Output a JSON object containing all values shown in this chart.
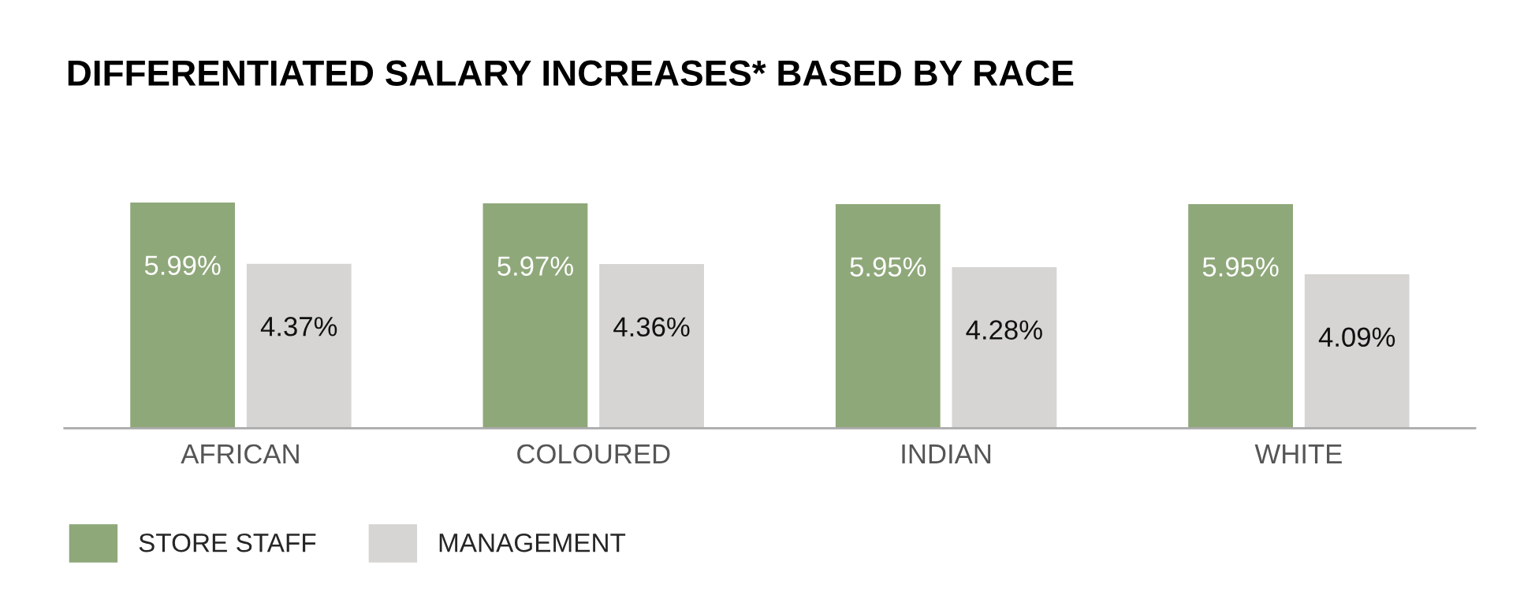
{
  "chart_data": {
    "type": "bar",
    "title": "DIFFERENTIATED SALARY INCREASES* BASED BY RACE",
    "categories": [
      "AFRICAN",
      "COLOURED",
      "INDIAN",
      "WHITE"
    ],
    "series": [
      {
        "name": "STORE STAFF",
        "color": "#8fa87a",
        "values": [
          5.99,
          5.97,
          5.95,
          5.95
        ],
        "value_labels": [
          "5.99%",
          "5.97%",
          "5.95%",
          "5.95%"
        ]
      },
      {
        "name": "MANAGEMENT",
        "color": "#d6d5d3",
        "values": [
          4.37,
          4.36,
          4.28,
          4.09
        ],
        "value_labels": [
          "4.37%",
          "4.36%",
          "4.28%",
          "4.09%"
        ]
      }
    ],
    "legend": "bottom left"
  }
}
